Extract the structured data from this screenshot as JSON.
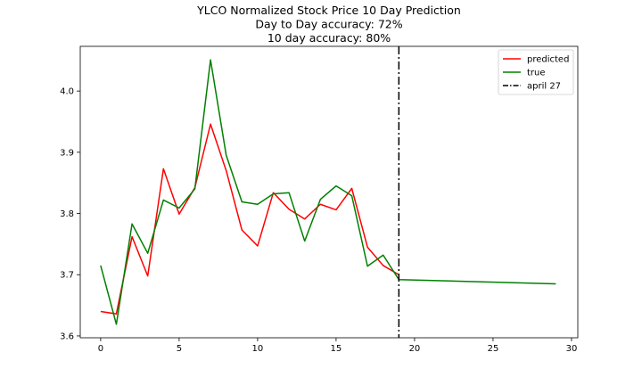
{
  "chart_data": {
    "type": "line",
    "title": [
      "YLCO Normalized Stock Price 10 Day Prediction",
      "Day to Day accuracy: 72%",
      "10 day accuracy: 80%"
    ],
    "xlabel": "",
    "ylabel": "",
    "xlim": [
      -1.3,
      30.4
    ],
    "ylim": [
      3.597,
      4.073
    ],
    "xticks": [
      0,
      5,
      10,
      15,
      20,
      25,
      30
    ],
    "yticks": [
      3.6,
      3.7,
      3.8,
      3.9,
      4.0
    ],
    "ytick_labels": [
      "3.6",
      "3.7",
      "3.8",
      "3.9",
      "4.0"
    ],
    "grid": false,
    "legend_position": "top-right",
    "series": [
      {
        "name": "predicted",
        "color": "#ff0000",
        "x": [
          0,
          1,
          2,
          3,
          4,
          5,
          6,
          7,
          8,
          9,
          10,
          11,
          12,
          13,
          14,
          15,
          16,
          17,
          18,
          19
        ],
        "y": [
          3.64,
          3.636,
          3.762,
          3.698,
          3.873,
          3.799,
          3.842,
          3.946,
          3.87,
          3.773,
          3.747,
          3.834,
          3.807,
          3.791,
          3.815,
          3.806,
          3.841,
          3.745,
          3.715,
          3.7
        ]
      },
      {
        "name": "true",
        "color": "#008000",
        "x": [
          0,
          1,
          2,
          3,
          4,
          5,
          6,
          7,
          8,
          9,
          10,
          11,
          12,
          13,
          14,
          15,
          16,
          17,
          18,
          19,
          29
        ],
        "y": [
          3.715,
          3.619,
          3.783,
          3.735,
          3.822,
          3.809,
          3.84,
          4.051,
          3.895,
          3.819,
          3.815,
          3.832,
          3.834,
          3.755,
          3.823,
          3.845,
          3.829,
          3.714,
          3.732,
          3.692,
          3.685
        ]
      }
    ],
    "vline": {
      "name": "april 27",
      "x": 19,
      "color": "#000000",
      "style": "dashdot"
    }
  }
}
